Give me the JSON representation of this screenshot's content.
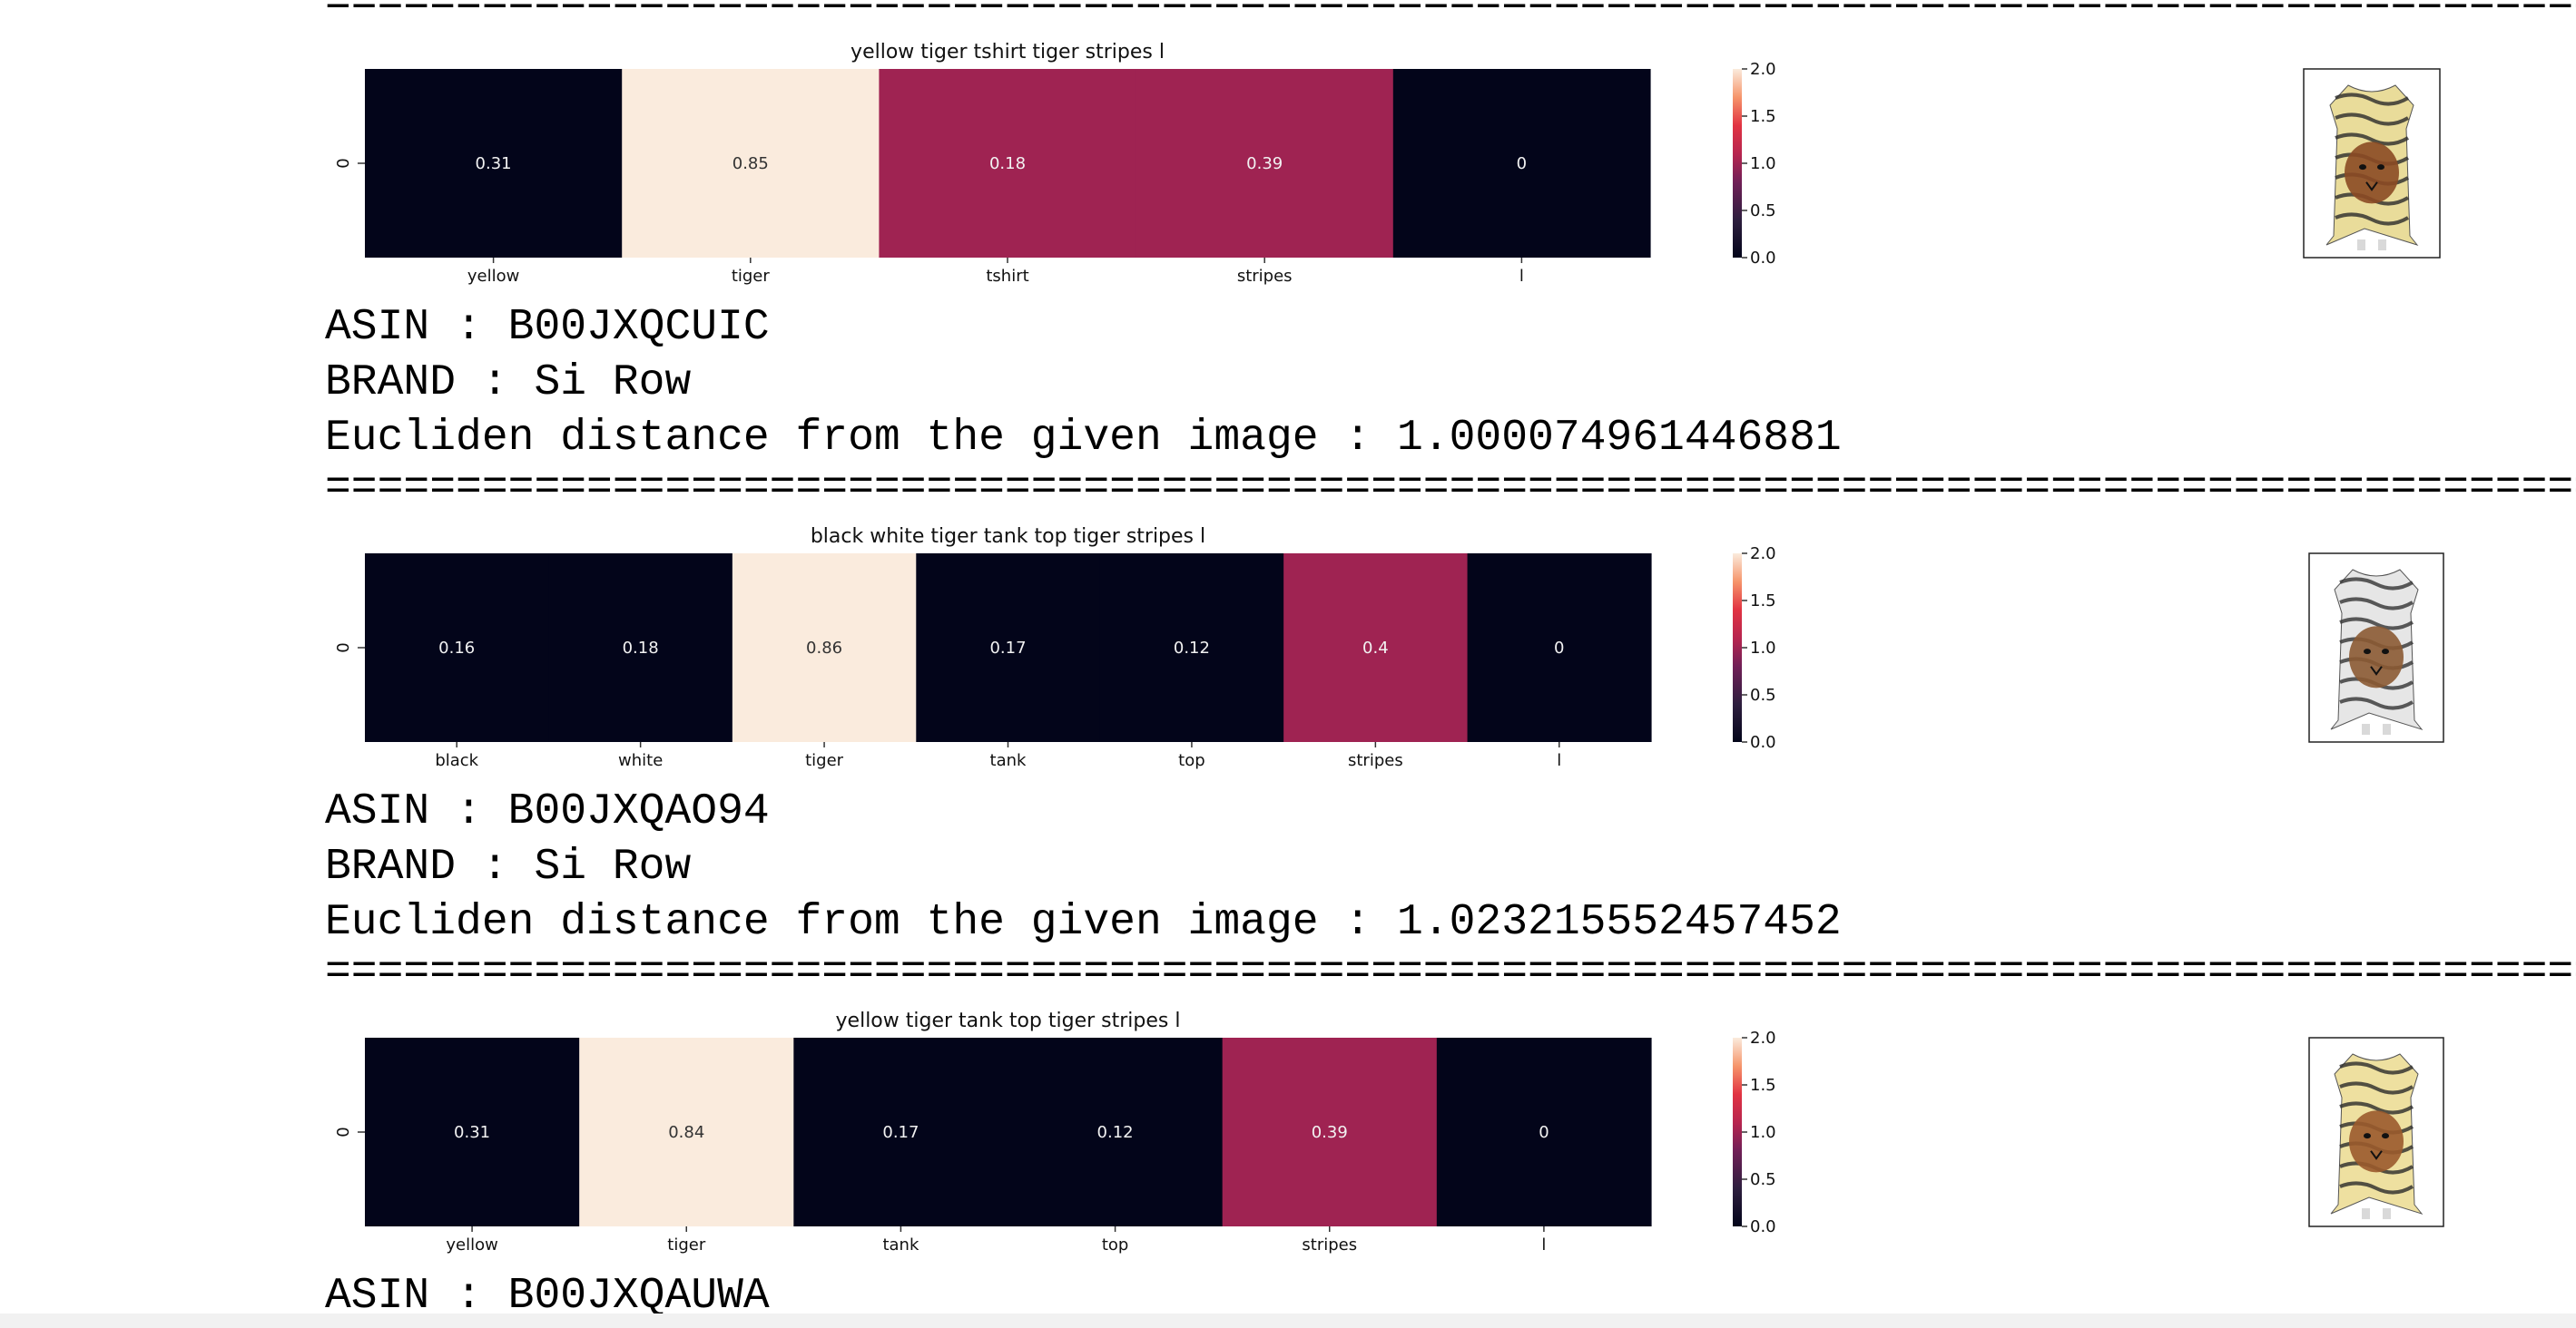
{
  "separator": "==========================================================================================================================================================",
  "colorbar": {
    "ticks": [
      "0.0",
      "0.5",
      "1.0",
      "1.5",
      "2.0"
    ],
    "vmin": 0,
    "vmax": 2
  },
  "y_tick": "0",
  "chart_data": [
    {
      "type": "heatmap",
      "title": "yellow tiger tshirt tiger stripes  l",
      "categories": [
        "yellow",
        "tiger",
        "tshirt",
        "stripes",
        "l"
      ],
      "values": [
        0.31,
        0.85,
        0.18,
        0.39,
        0
      ],
      "cell_levels": [
        0.0,
        2.0,
        1.0,
        1.0,
        0.0
      ],
      "colorbar_range": [
        0,
        2
      ]
    },
    {
      "type": "heatmap",
      "title": "black  white tiger tank top tiger stripes  l",
      "categories": [
        "black",
        "white",
        "tiger",
        "tank",
        "top",
        "stripes",
        "l"
      ],
      "values": [
        0.16,
        0.18,
        0.86,
        0.17,
        0.12,
        0.4,
        0
      ],
      "cell_levels": [
        0.0,
        0.0,
        2.0,
        0.0,
        0.0,
        1.0,
        0.0
      ],
      "colorbar_range": [
        0,
        2
      ]
    },
    {
      "type": "heatmap",
      "title": "yellow tiger tank top tiger stripes  l",
      "categories": [
        "yellow",
        "tiger",
        "tank",
        "top",
        "stripes",
        "l"
      ],
      "values": [
        0.31,
        0.84,
        0.17,
        0.12,
        0.39,
        0
      ],
      "cell_levels": [
        0.0,
        2.0,
        0.0,
        0.0,
        1.0,
        0.0
      ],
      "colorbar_range": [
        0,
        2
      ]
    }
  ],
  "items": [
    {
      "asin": "ASIN : B00JXQCUIC",
      "brand": "BRAND : Si Row",
      "distance": "Eucliden distance from the given image : 1.000074961446881"
    },
    {
      "asin": "ASIN : B00JXQAO94",
      "brand": "BRAND : Si Row",
      "distance": "Eucliden distance from the given image : 1.023215552457452"
    },
    {
      "asin": "ASIN : B00JXQAUWA"
    }
  ],
  "thumbnails": [
    {
      "icon": "tiger-tshirt-thumbnail",
      "colors": [
        "#e9dc9a",
        "#8b4a23",
        "#2b2b2b"
      ]
    },
    {
      "icon": "tiger-tank-top-thumbnail",
      "colors": [
        "#e6e6e6",
        "#8b5a33",
        "#333333"
      ]
    },
    {
      "icon": "tiger-tank-top-yellow-thumbnail",
      "colors": [
        "#eee0a0",
        "#9a5a2c",
        "#2b2b2b"
      ]
    }
  ]
}
